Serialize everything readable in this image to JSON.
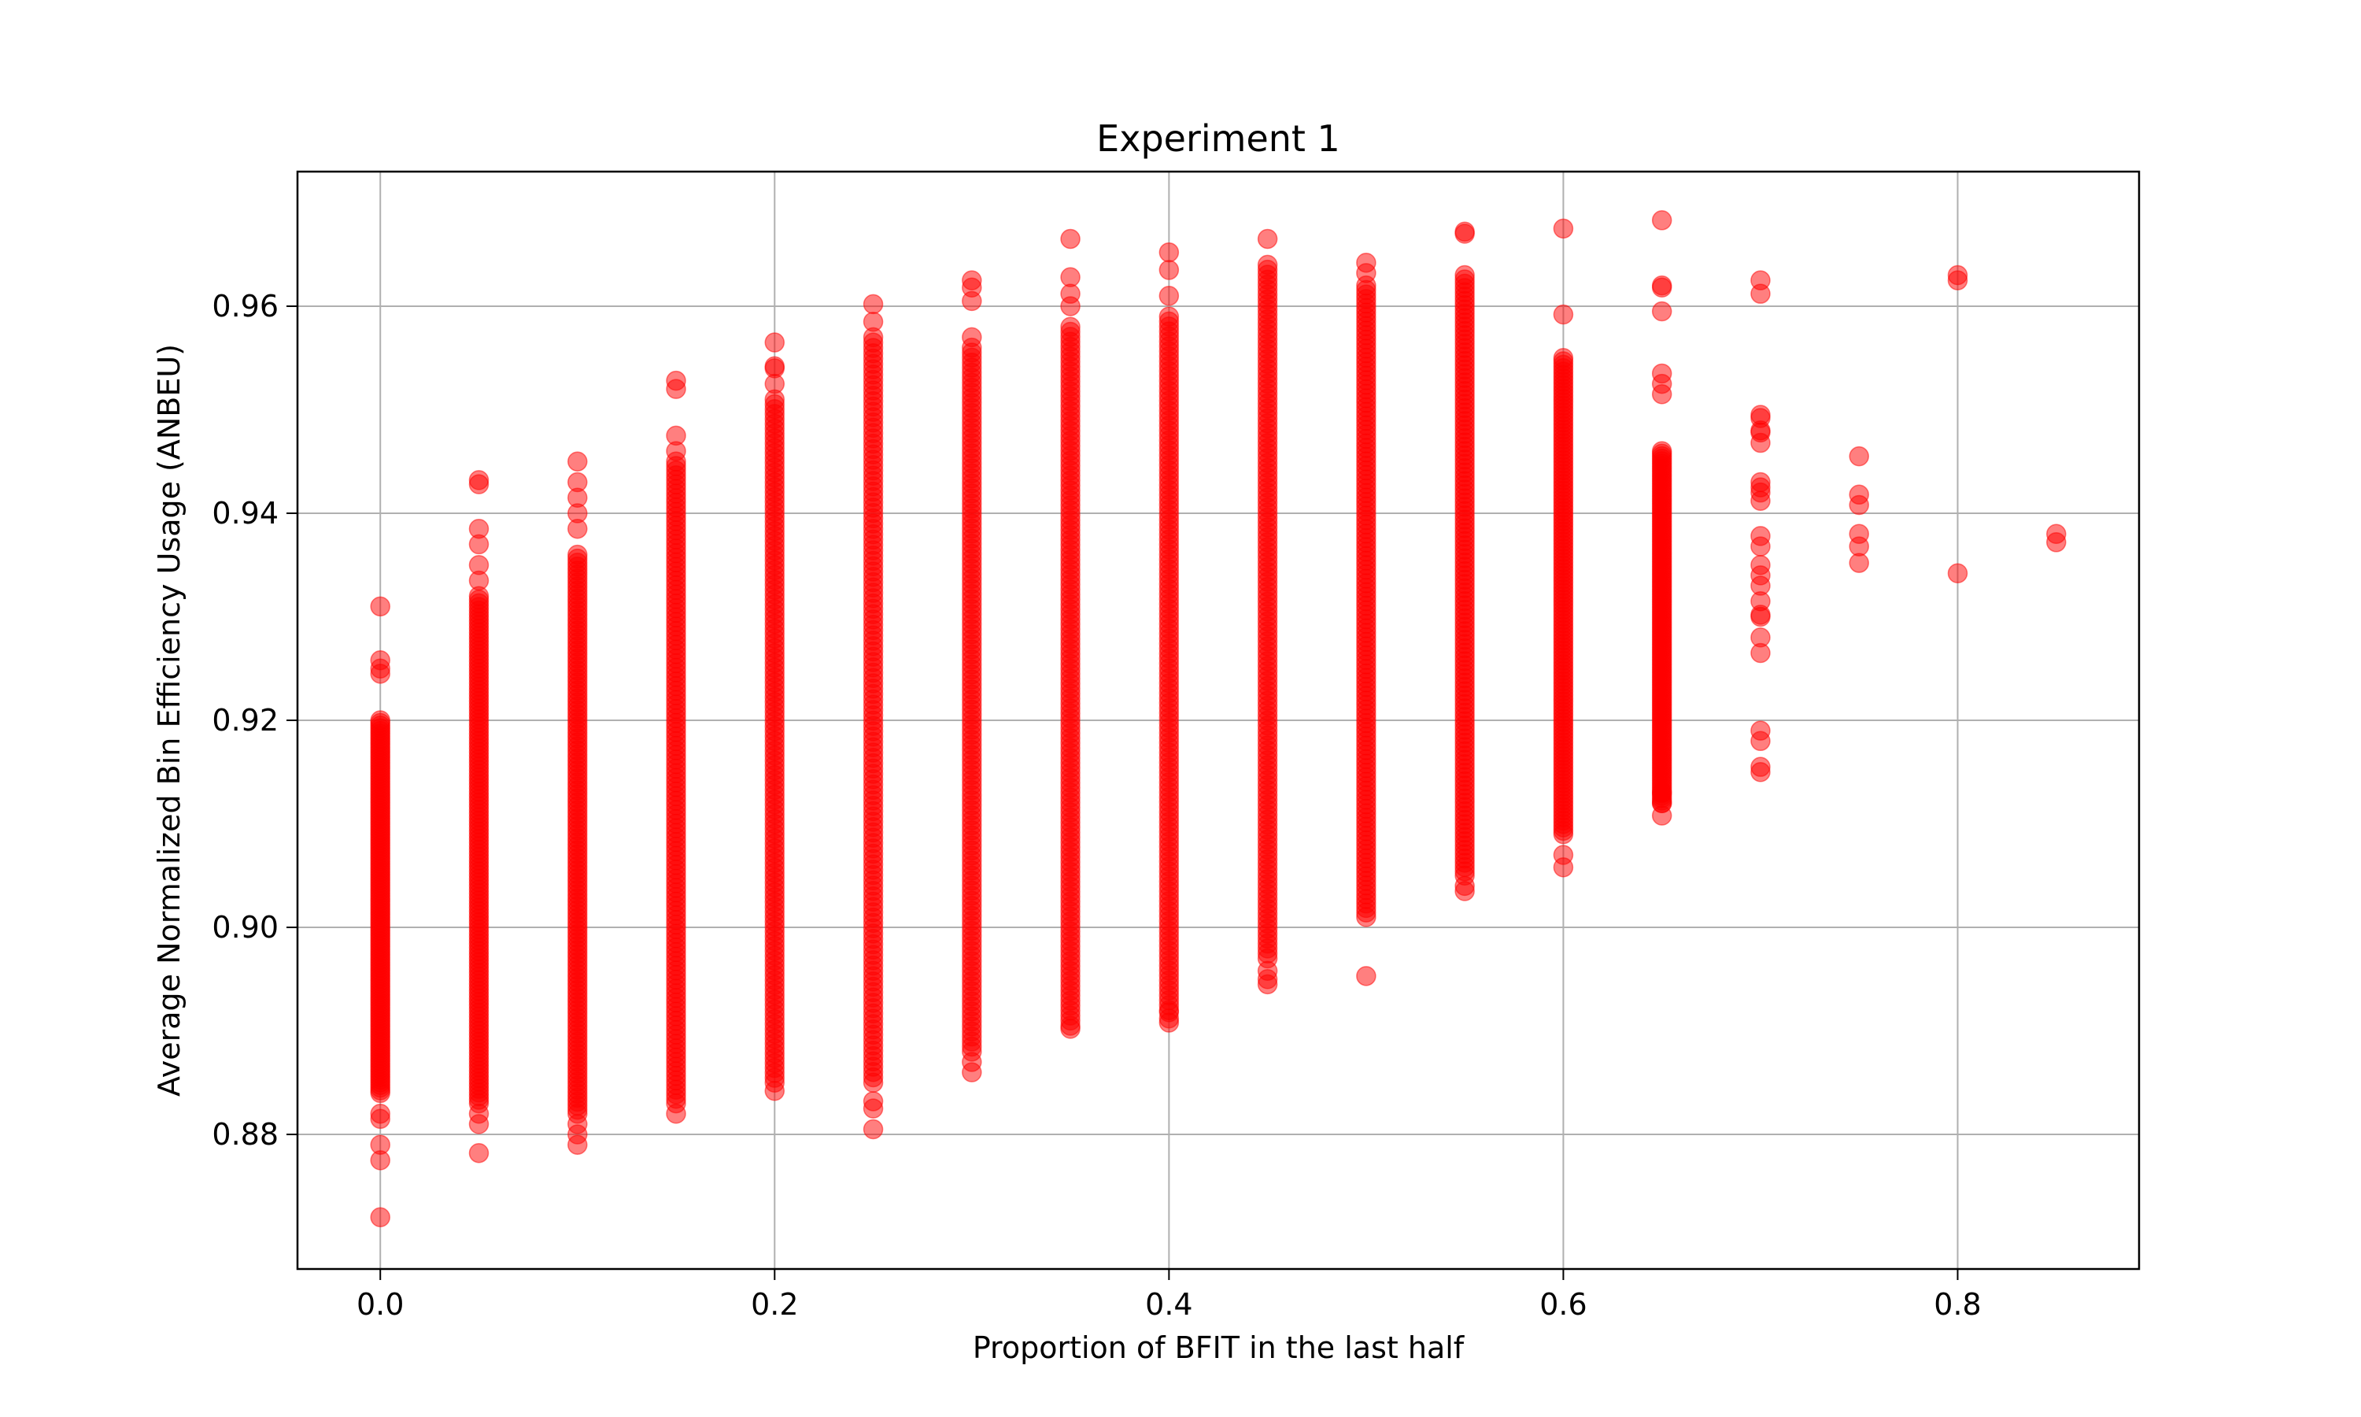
{
  "chart_data": {
    "type": "scatter",
    "title": "Experiment 1",
    "xlabel": "Proportion of BFIT in the last half",
    "ylabel": "Average Normalized Bin Efficiency Usage (ANBEU)",
    "xlim": [
      -0.042,
      0.892
    ],
    "ylim": [
      0.867,
      0.973
    ],
    "xticks": [
      "0.0",
      "0.2",
      "0.4",
      "0.6",
      "0.8"
    ],
    "xtick_values": [
      0.0,
      0.2,
      0.4,
      0.6,
      0.8
    ],
    "yticks": [
      "0.88",
      "0.90",
      "0.92",
      "0.94",
      "0.96"
    ],
    "ytick_values": [
      0.88,
      0.9,
      0.92,
      0.94,
      0.96
    ],
    "grid": true,
    "marker_color": "#ff0000",
    "marker_opacity": 0.5,
    "groups": [
      {
        "x": 0.0,
        "dense": [
          0.884,
          0.92
        ],
        "points": [
          0.872,
          0.8775,
          0.879,
          0.8815,
          0.882,
          0.9245,
          0.925,
          0.9258,
          0.931
        ]
      },
      {
        "x": 0.05,
        "dense": [
          0.883,
          0.932
        ],
        "points": [
          0.8782,
          0.881,
          0.882,
          0.9335,
          0.935,
          0.937,
          0.9385,
          0.9428,
          0.9432
        ]
      },
      {
        "x": 0.1,
        "dense": [
          0.882,
          0.936
        ],
        "points": [
          0.879,
          0.88,
          0.881,
          0.9385,
          0.94,
          0.9415,
          0.943,
          0.945
        ]
      },
      {
        "x": 0.15,
        "dense": [
          0.883,
          0.945
        ],
        "points": [
          0.882,
          0.946,
          0.9475,
          0.952,
          0.9528
        ]
      },
      {
        "x": 0.2,
        "dense": [
          0.885,
          0.951
        ],
        "points": [
          0.8842,
          0.9525,
          0.954,
          0.9542,
          0.9565
        ]
      },
      {
        "x": 0.25,
        "dense": [
          0.885,
          0.957
        ],
        "points": [
          0.8805,
          0.8825,
          0.8832,
          0.9585,
          0.9602
        ]
      },
      {
        "x": 0.3,
        "dense": [
          0.888,
          0.956
        ],
        "points": [
          0.886,
          0.887,
          0.957,
          0.9605,
          0.9618,
          0.9625
        ]
      },
      {
        "x": 0.35,
        "dense": [
          0.891,
          0.958
        ],
        "points": [
          0.8902,
          0.8905,
          0.96,
          0.9612,
          0.9628,
          0.9665
        ]
      },
      {
        "x": 0.4,
        "dense": [
          0.892,
          0.959
        ],
        "points": [
          0.8908,
          0.8912,
          0.8918,
          0.961,
          0.9635,
          0.9652
        ]
      },
      {
        "x": 0.45,
        "dense": [
          0.897,
          0.964
        ],
        "points": [
          0.8945,
          0.895,
          0.8958,
          0.9665
        ]
      },
      {
        "x": 0.5,
        "dense": [
          0.901,
          0.962
        ],
        "points": [
          0.8953,
          0.9632,
          0.9642
        ]
      },
      {
        "x": 0.55,
        "dense": [
          0.905,
          0.963
        ],
        "points": [
          0.9035,
          0.904,
          0.967,
          0.9672
        ]
      },
      {
        "x": 0.6,
        "dense": [
          0.909,
          0.955
        ],
        "points": [
          0.9058,
          0.907,
          0.9592,
          0.9675
        ]
      },
      {
        "x": 0.65,
        "dense": [
          0.912,
          0.946
        ],
        "points": [
          0.9108,
          0.912,
          0.913,
          0.9515,
          0.9525,
          0.9535,
          0.9595,
          0.9618,
          0.962,
          0.9683
        ]
      },
      {
        "x": 0.7,
        "dense": null,
        "points": [
          0.915,
          0.9155,
          0.918,
          0.919,
          0.9265,
          0.928,
          0.93,
          0.9302,
          0.9315,
          0.933,
          0.934,
          0.935,
          0.9368,
          0.9378,
          0.9412,
          0.942,
          0.9425,
          0.943,
          0.9468,
          0.9478,
          0.948,
          0.9492,
          0.9495,
          0.9612,
          0.9625
        ]
      },
      {
        "x": 0.75,
        "dense": null,
        "points": [
          0.9352,
          0.9368,
          0.938,
          0.9408,
          0.9418,
          0.9455
        ]
      },
      {
        "x": 0.8,
        "dense": null,
        "points": [
          0.9342,
          0.9625,
          0.963
        ]
      },
      {
        "x": 0.85,
        "dense": null,
        "points": [
          0.9372,
          0.938
        ]
      }
    ]
  }
}
